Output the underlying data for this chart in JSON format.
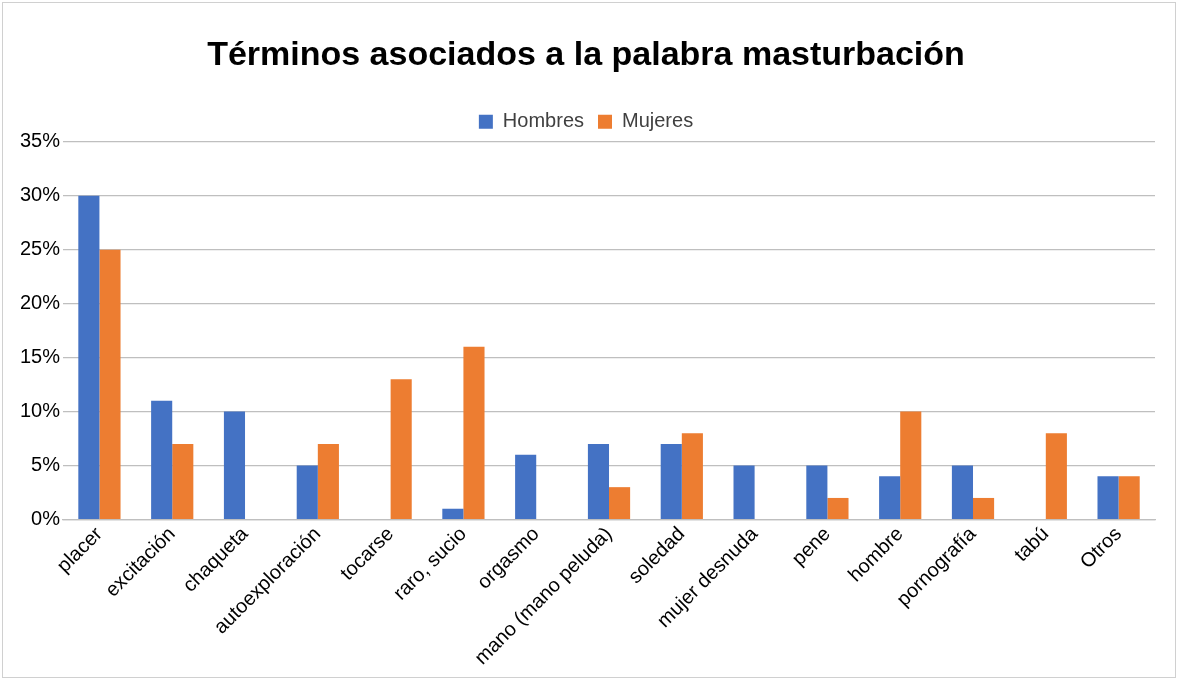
{
  "chart_data": {
    "type": "bar",
    "title": "Términos asociados a la palabra masturbación",
    "categories": [
      "placer",
      "excitación",
      "chaqueta",
      "autoexploración",
      "tocarse",
      "raro, sucio",
      "orgasmo",
      "mano (mano peluda)",
      "soledad",
      "mujer desnuda",
      "pene",
      "hombre",
      "pornografía",
      "tabú",
      "Otros"
    ],
    "series": [
      {
        "name": "Hombres",
        "color": "#4472c4",
        "values": [
          30,
          11,
          10,
          5,
          0,
          1,
          6,
          7,
          7,
          5,
          5,
          4,
          5,
          0,
          4
        ]
      },
      {
        "name": "Mujeres",
        "color": "#ed7d31",
        "values": [
          25,
          7,
          0,
          7,
          13,
          16,
          0,
          3,
          8,
          0,
          2,
          10,
          2,
          8,
          4
        ]
      }
    ],
    "ylim": [
      0,
      35
    ],
    "yticks": [
      {
        "value": 0,
        "label": "0%"
      },
      {
        "value": 5,
        "label": "5%"
      },
      {
        "value": 10,
        "label": "10%"
      },
      {
        "value": 15,
        "label": "15%"
      },
      {
        "value": 20,
        "label": "20%"
      },
      {
        "value": 25,
        "label": "25%"
      },
      {
        "value": 30,
        "label": "30%"
      },
      {
        "value": 35,
        "label": "35%"
      }
    ],
    "grid": "y",
    "legend": "top"
  }
}
